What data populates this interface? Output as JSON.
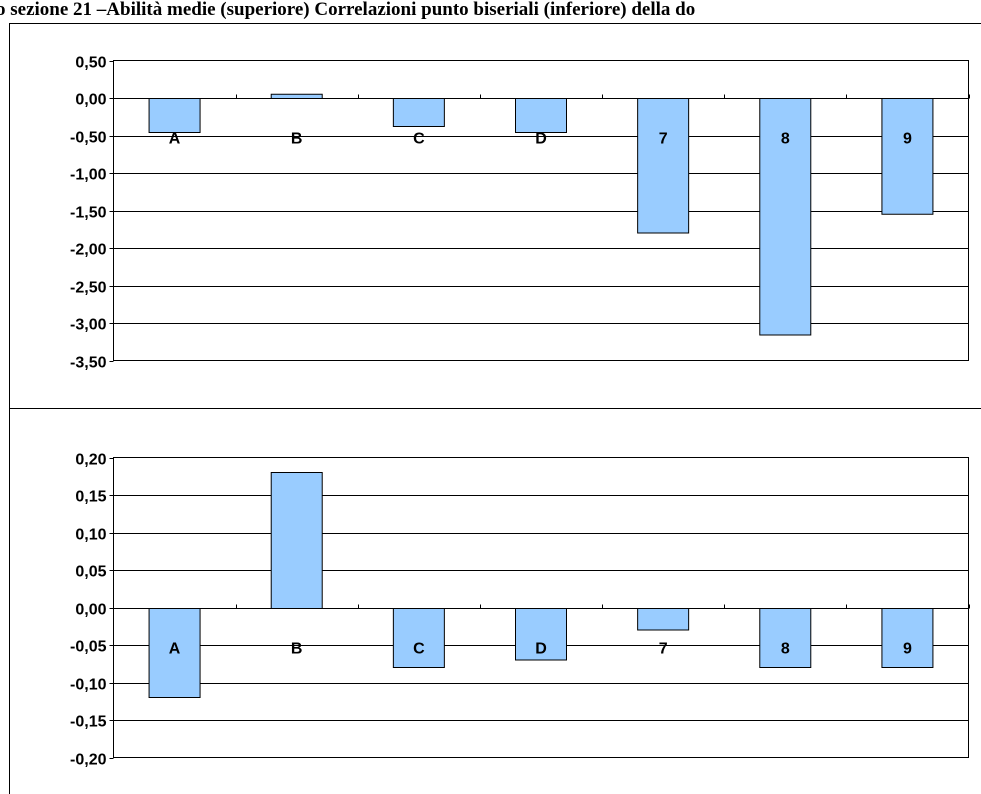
{
  "title": "o sezione 21 –Abilità medie (superiore) Correlazioni punto biseriali (inferiore) della do",
  "chart_data": [
    {
      "type": "bar",
      "categories": [
        "A",
        "B",
        "C",
        "D",
        "7",
        "8",
        "9"
      ],
      "values": [
        -0.46,
        0.05,
        -0.38,
        -0.46,
        -1.8,
        -3.16,
        -1.55
      ],
      "ylim": [
        -3.5,
        0.5
      ],
      "yticks": [
        "0,50",
        "0,00",
        "-0,50",
        "-1,00",
        "-1,50",
        "-2,00",
        "-2,50",
        "-3,00",
        "-3,50"
      ],
      "grid": true,
      "bar_color": "#99ccff"
    },
    {
      "type": "bar",
      "categories": [
        "A",
        "B",
        "C",
        "D",
        "7",
        "8",
        "9"
      ],
      "values": [
        -0.12,
        0.18,
        -0.08,
        -0.07,
        -0.03,
        -0.08,
        -0.08
      ],
      "ylim": [
        -0.2,
        0.2
      ],
      "yticks": [
        "0,20",
        "0,15",
        "0,10",
        "0,05",
        "0,00",
        "-0,05",
        "-0,10",
        "-0,15",
        "-0,20"
      ],
      "grid": true,
      "bar_color": "#99ccff"
    }
  ]
}
